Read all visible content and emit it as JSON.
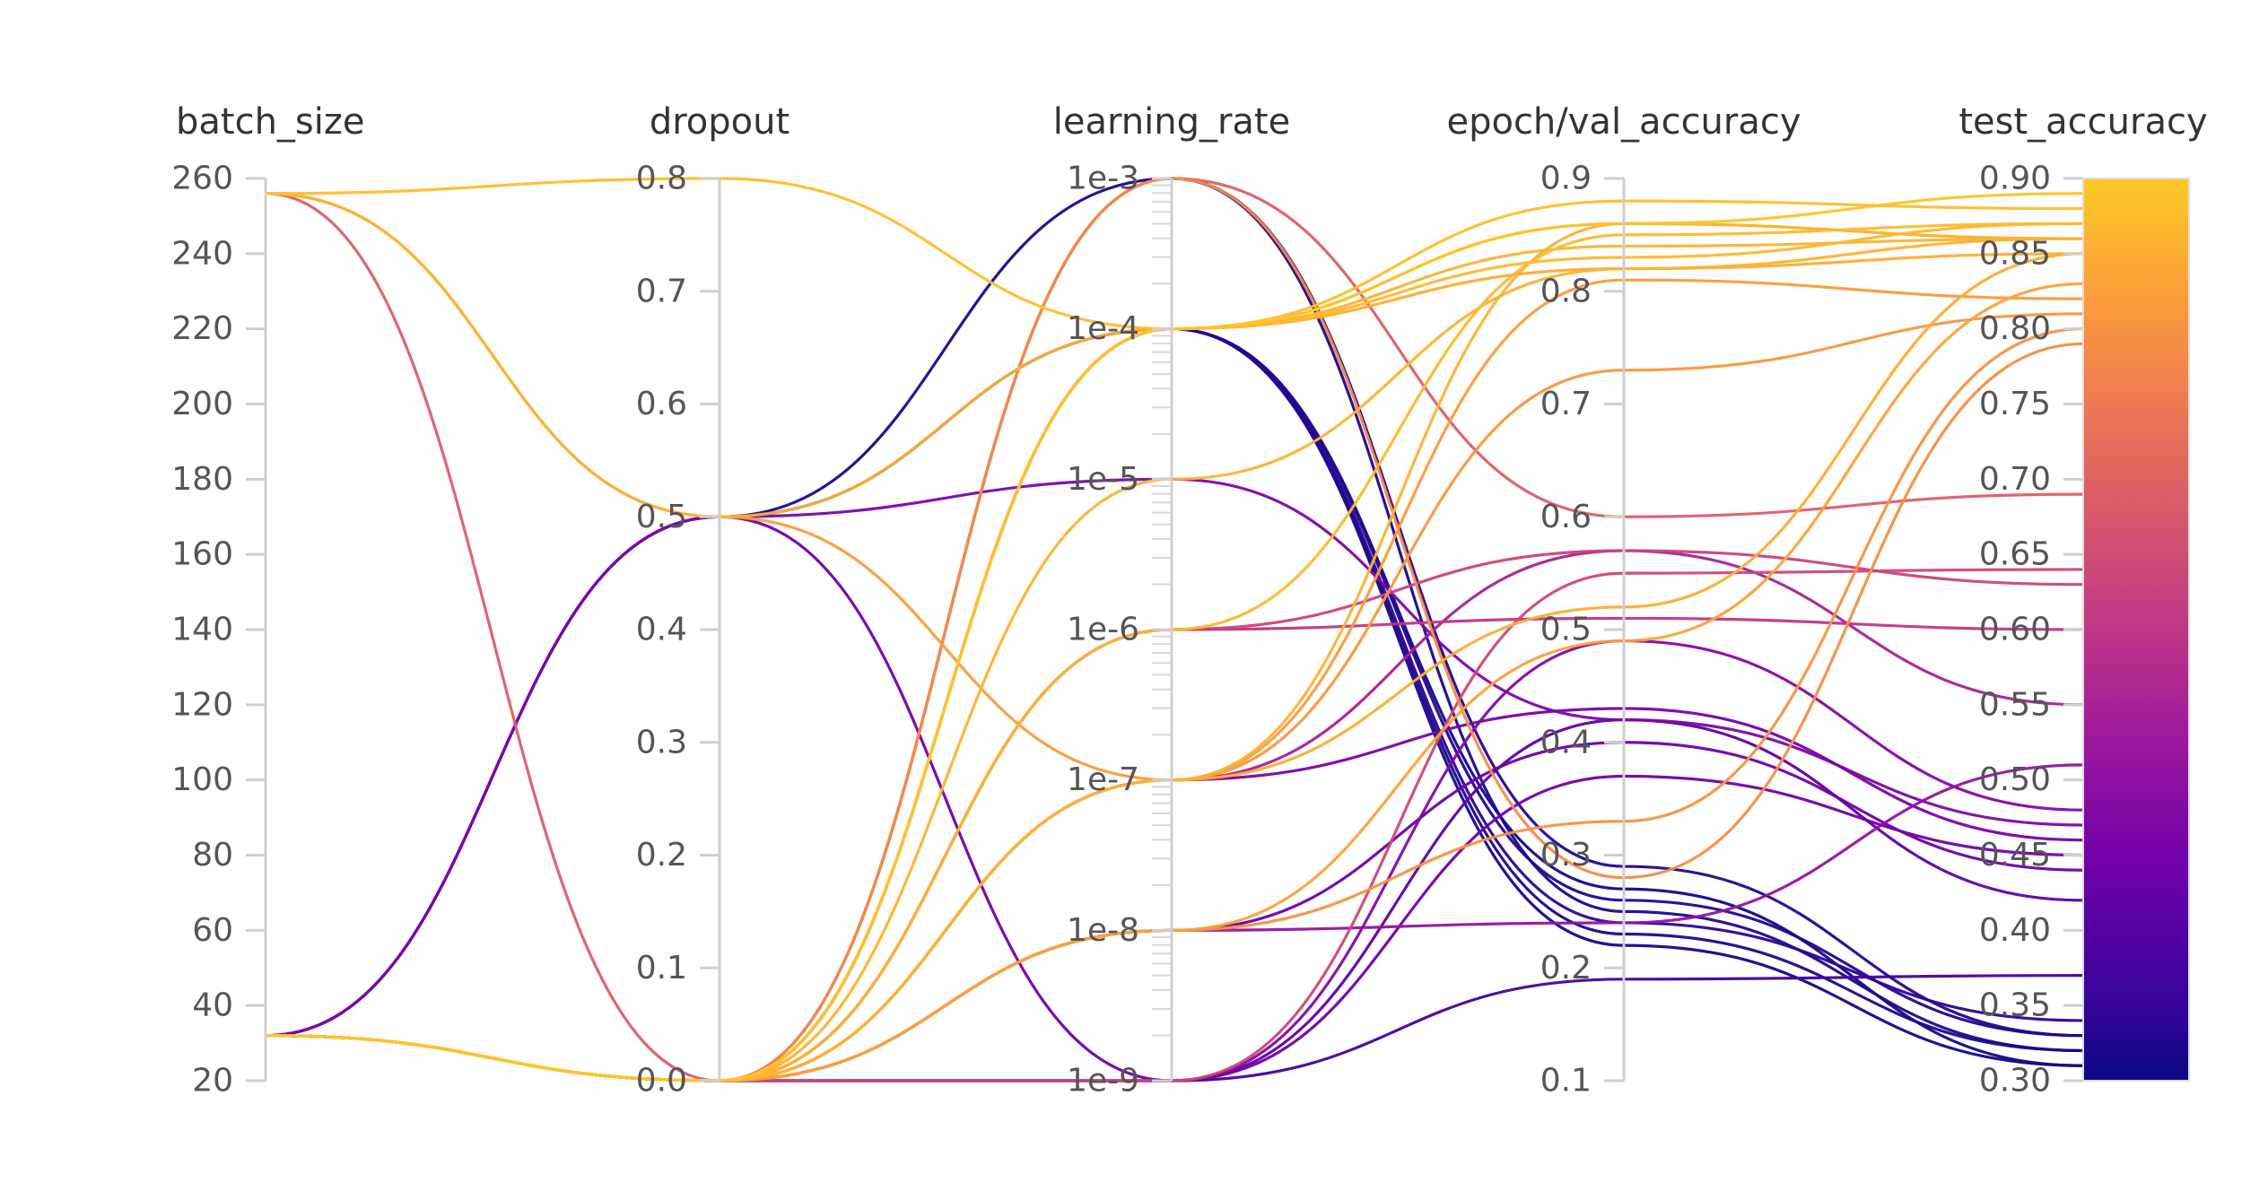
{
  "chart_data": {
    "type": "parallel_coordinates",
    "axes": [
      {
        "key": "batch_size",
        "label": "batch_size",
        "scale": "linear",
        "range": [
          20,
          260
        ],
        "ticks": [
          "20",
          "40",
          "60",
          "80",
          "100",
          "120",
          "140",
          "160",
          "180",
          "200",
          "220",
          "240",
          "260"
        ]
      },
      {
        "key": "dropout",
        "label": "dropout",
        "scale": "linear",
        "range": [
          0,
          0.8
        ],
        "ticks": [
          "0.0",
          "0.1",
          "0.2",
          "0.3",
          "0.4",
          "0.5",
          "0.6",
          "0.7",
          "0.8"
        ]
      },
      {
        "key": "learning_rate",
        "label": "learning_rate",
        "scale": "log",
        "range": [
          1e-09,
          0.001
        ],
        "ticks": [
          "1e-9",
          "1e-8",
          "1e-7",
          "1e-6",
          "1e-5",
          "1e-4",
          "1e-3"
        ]
      },
      {
        "key": "val_accuracy",
        "label": "epoch/val_accuracy",
        "scale": "linear",
        "range": [
          0.1,
          0.9
        ],
        "ticks": [
          "0.1",
          "0.2",
          "0.3",
          "0.4",
          "0.5",
          "0.6",
          "0.7",
          "0.8",
          "0.9"
        ]
      },
      {
        "key": "test_accuracy",
        "label": "test_accuracy",
        "scale": "linear",
        "range": [
          0.3,
          0.9
        ],
        "ticks": [
          "0.30",
          "0.35",
          "0.40",
          "0.45",
          "0.50",
          "0.55",
          "0.60",
          "0.65",
          "0.70",
          "0.75",
          "0.80",
          "0.85",
          "0.90"
        ]
      }
    ],
    "colorbar": {
      "metric": "test_accuracy",
      "range": [
        0.3,
        0.9
      ],
      "colors": [
        "#0d0887",
        "#46039f",
        "#7201a8",
        "#9c179e",
        "#bd3786",
        "#d8576b",
        "#ed7953",
        "#fb9f3a",
        "#fdca26"
      ]
    },
    "runs": [
      {
        "batch_size": 256,
        "dropout": 0.8,
        "learning_rate": 0.0001,
        "val_accuracy": 0.88,
        "test_accuracy": 0.88
      },
      {
        "batch_size": 256,
        "dropout": 0.5,
        "learning_rate": 0.0001,
        "val_accuracy": 0.86,
        "test_accuracy": 0.86
      },
      {
        "batch_size": 256,
        "dropout": 0.5,
        "learning_rate": 1e-07,
        "val_accuracy": 0.81,
        "test_accuracy": 0.82
      },
      {
        "batch_size": 256,
        "dropout": 0.0,
        "learning_rate": 0.001,
        "val_accuracy": 0.6,
        "test_accuracy": 0.69
      },
      {
        "batch_size": 32,
        "dropout": 0.5,
        "learning_rate": 0.001,
        "val_accuracy": 0.25,
        "test_accuracy": 0.32
      },
      {
        "batch_size": 32,
        "dropout": 0.5,
        "learning_rate": 0.0001,
        "val_accuracy": 0.22,
        "test_accuracy": 0.31
      },
      {
        "batch_size": 32,
        "dropout": 0.5,
        "learning_rate": 1e-05,
        "val_accuracy": 0.42,
        "test_accuracy": 0.47
      },
      {
        "batch_size": 32,
        "dropout": 0.0,
        "learning_rate": 1e-09,
        "val_accuracy": 0.19,
        "test_accuracy": 0.37
      },
      {
        "batch_size": 32,
        "dropout": 0.0,
        "learning_rate": 0.0001,
        "val_accuracy": 0.26,
        "test_accuracy": 0.33
      },
      {
        "batch_size": 32,
        "dropout": 0.0,
        "learning_rate": 0.0001,
        "val_accuracy": 0.24,
        "test_accuracy": 0.34
      },
      {
        "batch_size": 32,
        "dropout": 0.0,
        "learning_rate": 0.0001,
        "val_accuracy": 0.23,
        "test_accuracy": 0.32
      },
      {
        "batch_size": 32,
        "dropout": 0.0,
        "learning_rate": 0.0001,
        "val_accuracy": 0.27,
        "test_accuracy": 0.31
      },
      {
        "batch_size": 32,
        "dropout": 0.0,
        "learning_rate": 0.001,
        "val_accuracy": 0.29,
        "test_accuracy": 0.33
      },
      {
        "batch_size": 32,
        "dropout": 0.0,
        "learning_rate": 0.0001,
        "val_accuracy": 0.84,
        "test_accuracy": 0.86
      },
      {
        "batch_size": 32,
        "dropout": 0.0,
        "learning_rate": 0.0001,
        "val_accuracy": 0.83,
        "test_accuracy": 0.87
      },
      {
        "batch_size": 32,
        "dropout": 0.0,
        "learning_rate": 0.0001,
        "val_accuracy": 0.86,
        "test_accuracy": 0.89
      },
      {
        "batch_size": 32,
        "dropout": 0.0,
        "learning_rate": 0.0001,
        "val_accuracy": 0.82,
        "test_accuracy": 0.85
      },
      {
        "batch_size": 32,
        "dropout": 0.0,
        "learning_rate": 1e-05,
        "val_accuracy": 0.82,
        "test_accuracy": 0.86
      },
      {
        "batch_size": 32,
        "dropout": 0.0,
        "learning_rate": 1e-06,
        "val_accuracy": 0.85,
        "test_accuracy": 0.87
      },
      {
        "batch_size": 32,
        "dropout": 0.0,
        "learning_rate": 1e-07,
        "val_accuracy": 0.86,
        "test_accuracy": 0.86
      },
      {
        "batch_size": 32,
        "dropout": 0.0,
        "learning_rate": 1e-07,
        "val_accuracy": 0.73,
        "test_accuracy": 0.81
      },
      {
        "batch_size": 32,
        "dropout": 0.0,
        "learning_rate": 1e-07,
        "val_accuracy": 0.52,
        "test_accuracy": 0.85
      },
      {
        "batch_size": 32,
        "dropout": 0.0,
        "learning_rate": 1e-08,
        "val_accuracy": 0.49,
        "test_accuracy": 0.83
      },
      {
        "batch_size": 32,
        "dropout": 0.0,
        "learning_rate": 1e-08,
        "val_accuracy": 0.33,
        "test_accuracy": 0.8
      },
      {
        "batch_size": 32,
        "dropout": 0.0,
        "learning_rate": 0.001,
        "val_accuracy": 0.28,
        "test_accuracy": 0.79
      },
      {
        "batch_size": 32,
        "dropout": 0.0,
        "learning_rate": 1e-06,
        "val_accuracy": 0.51,
        "test_accuracy": 0.6
      },
      {
        "batch_size": 32,
        "dropout": 0.0,
        "learning_rate": 1e-06,
        "val_accuracy": 0.57,
        "test_accuracy": 0.63
      },
      {
        "batch_size": 32,
        "dropout": 0.0,
        "learning_rate": 1e-09,
        "val_accuracy": 0.55,
        "test_accuracy": 0.64
      },
      {
        "batch_size": 32,
        "dropout": 0.0,
        "learning_rate": 1e-07,
        "val_accuracy": 0.57,
        "test_accuracy": 0.55
      },
      {
        "batch_size": 32,
        "dropout": 0.0,
        "learning_rate": 1e-08,
        "val_accuracy": 0.24,
        "test_accuracy": 0.51
      },
      {
        "batch_size": 32,
        "dropout": 0.0,
        "learning_rate": 1e-09,
        "val_accuracy": 0.49,
        "test_accuracy": 0.48
      },
      {
        "batch_size": 32,
        "dropout": 0.0,
        "learning_rate": 1e-07,
        "val_accuracy": 0.43,
        "test_accuracy": 0.46
      },
      {
        "batch_size": 32,
        "dropout": 0.0,
        "learning_rate": 1e-09,
        "val_accuracy": 0.42,
        "test_accuracy": 0.42
      },
      {
        "batch_size": 32,
        "dropout": 0.5,
        "learning_rate": 1e-09,
        "val_accuracy": 0.37,
        "test_accuracy": 0.45
      },
      {
        "batch_size": 32,
        "dropout": 0.0,
        "learning_rate": 1e-08,
        "val_accuracy": 0.4,
        "test_accuracy": 0.44
      }
    ]
  }
}
